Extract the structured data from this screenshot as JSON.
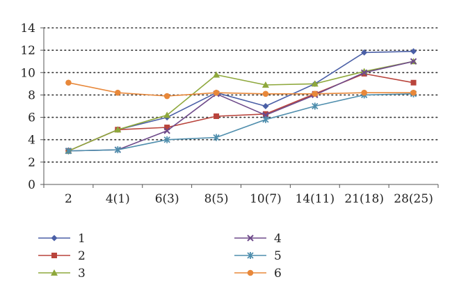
{
  "chart_data": {
    "type": "line",
    "categories": [
      "2",
      "4(1)",
      "6(3)",
      "8(5)",
      "10(7)",
      "14(11)",
      "21(18)",
      "28(25)"
    ],
    "ylim": [
      0,
      14
    ],
    "yticks": [
      0,
      2,
      4,
      6,
      8,
      10,
      12,
      14
    ],
    "grid": "horizontal-dotted",
    "legend_position": "bottom",
    "series": [
      {
        "name": "1",
        "color": "#4a5fa6",
        "marker": "diamond",
        "values": [
          3.0,
          4.9,
          6.0,
          8.2,
          7.0,
          9.0,
          11.8,
          11.9
        ]
      },
      {
        "name": "2",
        "color": "#b9443c",
        "marker": "square",
        "values": [
          3.0,
          4.9,
          5.1,
          6.1,
          6.3,
          8.1,
          9.9,
          9.1
        ]
      },
      {
        "name": "3",
        "color": "#8ea83c",
        "marker": "triangle",
        "values": [
          3.0,
          4.9,
          6.2,
          9.8,
          8.9,
          9.0,
          10.1,
          11.0
        ]
      },
      {
        "name": "4",
        "color": "#6e4a8a",
        "marker": "x",
        "values": [
          3.0,
          3.1,
          4.8,
          8.1,
          6.2,
          8.0,
          10.0,
          11.0
        ]
      },
      {
        "name": "5",
        "color": "#4f8ead",
        "marker": "star",
        "values": [
          3.0,
          3.1,
          4.0,
          4.2,
          5.8,
          7.0,
          8.0,
          8.1
        ]
      },
      {
        "name": "6",
        "color": "#e8883a",
        "marker": "circle",
        "values": [
          9.1,
          8.2,
          7.9,
          8.2,
          8.1,
          8.1,
          8.2,
          8.2
        ]
      }
    ]
  }
}
